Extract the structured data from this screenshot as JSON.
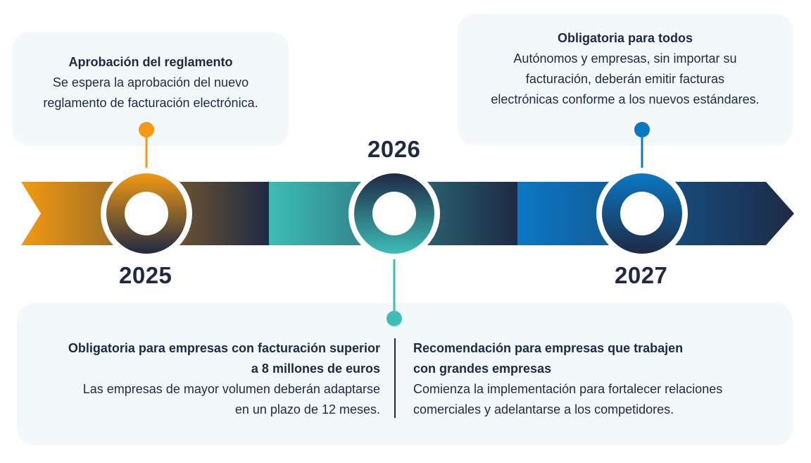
{
  "milestones": {
    "m2025": {
      "year": "2025",
      "title": "Aprobación del reglamento",
      "lines": [
        "Se espera la aprobación del nuevo",
        "reglamento de facturación electrónica."
      ],
      "color": "#f39a12"
    },
    "m2026": {
      "year": "2026",
      "color": "#3dbdb6",
      "left": {
        "title_lines": [
          "Obligatoria para empresas con facturación superior",
          "a 8 millones de euros"
        ],
        "lines": [
          "Las empresas de mayor volumen deberán adaptarse",
          "en un plazo de 12 meses."
        ]
      },
      "right": {
        "title_lines": [
          "Recomendación para empresas que trabajen",
          "con grandes empresas"
        ],
        "lines": [
          "Comienza la implementación para fortalecer relaciones",
          "comerciales y adelantarse a los competidores."
        ]
      }
    },
    "m2027": {
      "year": "2027",
      "title": "Obligatoria para todos",
      "lines": [
        "Autónomos y empresas, sin importar su",
        "facturación, deberán emitir facturas",
        "electrónicas conforme a los nuevos estándares."
      ],
      "color": "#0b78c4"
    }
  },
  "colors": {
    "navy": "#1e2a45",
    "card_bg": "#f3f8fb"
  }
}
